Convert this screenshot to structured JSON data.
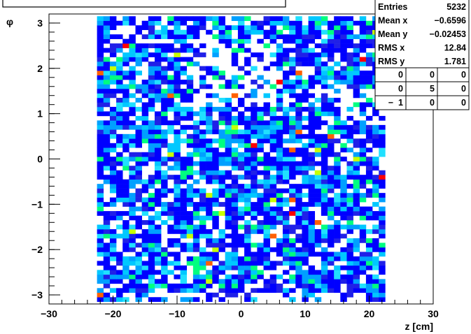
{
  "chart_data": {
    "type": "heatmap",
    "title": "",
    "xlabel": "z [cm]",
    "ylabel": "φ",
    "xlim": [
      -30,
      30
    ],
    "ylim": [
      -3.2,
      3.2
    ],
    "x_ticks": [
      "−30",
      "−20",
      "−10",
      "0",
      "10",
      "20",
      "30"
    ],
    "x_tick_values": [
      -30,
      -20,
      -10,
      0,
      10,
      20,
      30
    ],
    "y_ticks": [
      "−3",
      "−2",
      "−1",
      "0",
      "1",
      "2",
      "3"
    ],
    "y_tick_values": [
      -3,
      -2,
      -1,
      0,
      1,
      2,
      3
    ],
    "x_range_filled": [
      -22.5,
      22.5
    ],
    "bin_width_x": 1.0,
    "bin_width_y": 0.1,
    "palette": [
      "#0000ff",
      "#2020e8",
      "#00a0ff",
      "#00c8ff",
      "#20e0ff",
      "#00ff80",
      "#c8ff00",
      "#ff6000",
      "#ff0000"
    ],
    "stats": {
      "name": "",
      "rows": [
        {
          "label": "Entries",
          "value": "5232"
        },
        {
          "label": "Mean x",
          "value": "−0.6596"
        },
        {
          "label": "Mean y",
          "value": "−0.02453"
        },
        {
          "label": "RMS x",
          "value": "12.84"
        },
        {
          "label": "RMS y",
          "value": "1.781"
        }
      ],
      "overflow_grid": [
        [
          "0",
          "0",
          "0"
        ],
        [
          "0",
          "5",
          "0"
        ],
        [
          "1",
          "0",
          "0"
        ]
      ]
    }
  }
}
